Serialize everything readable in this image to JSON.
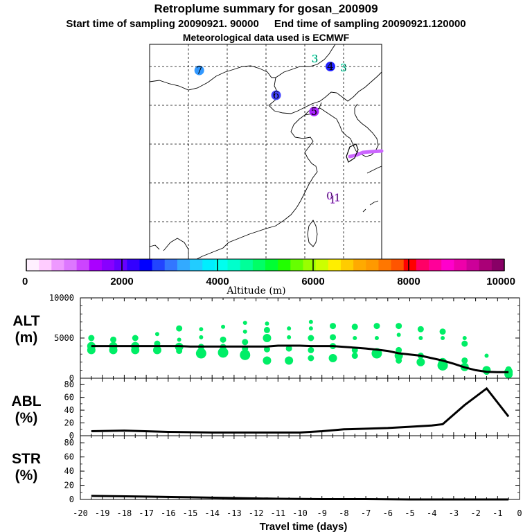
{
  "header": {
    "title": "Retroplume summary for gosan_200909",
    "start_time": "Start time of sampling 20090921. 90000",
    "end_time": "End time of sampling 20090921.120000",
    "met_data": "Meteorological data used is ECMWF"
  },
  "map": {
    "day_markers": [
      {
        "label": "0",
        "lon": 126.2,
        "lat": 33.3,
        "color": "#cc66ff"
      },
      {
        "label": "1",
        "lon": 126.6,
        "lat": 32.8,
        "color": "#cc66ff"
      },
      {
        "label": "1",
        "lon": 127.2,
        "lat": 33.1,
        "color": "#cc66ff"
      },
      {
        "label": "3",
        "lon": 124.3,
        "lat": 51.0,
        "color": "#33ffcc"
      },
      {
        "label": "3",
        "lon": 128.0,
        "lat": 49.8,
        "color": "#33ffcc"
      },
      {
        "label": "4",
        "lon": 126.3,
        "lat": 50.0,
        "color": "#2222ff"
      },
      {
        "label": "5",
        "lon": 124.2,
        "lat": 44.2,
        "color": "#aa22ff"
      },
      {
        "label": "6",
        "lon": 119.3,
        "lat": 46.3,
        "color": "#4444ff"
      },
      {
        "label": "7",
        "lon": 109.4,
        "lat": 49.5,
        "color": "#3399ff"
      }
    ],
    "plume_colors": [
      "#cc66ff",
      "#aa44ff"
    ]
  },
  "colorbar": {
    "colors": [
      "#fff0ff",
      "#ffccff",
      "#ee99ff",
      "#dd77ff",
      "#cc44ff",
      "#aa00ff",
      "#8800ff",
      "#6600ff",
      "#3300ff",
      "#0000ff",
      "#2244ff",
      "#3377ff",
      "#33aaff",
      "#22ccff",
      "#00eeff",
      "#00ffee",
      "#00ffcc",
      "#00ff99",
      "#00ff66",
      "#00ff33",
      "#22ff00",
      "#66ff00",
      "#99ff00",
      "#ccff00",
      "#ffee00",
      "#ffcc00",
      "#ffaa00",
      "#ff9900",
      "#ff7700",
      "#ff5500",
      "#ff0000",
      "#ff0066",
      "#ff0099",
      "#ff00cc",
      "#ee00aa",
      "#cc0099",
      "#aa0077",
      "#880066"
    ],
    "tick_labels": [
      "0",
      "2000",
      "4000",
      "6000",
      "8000",
      "10000"
    ],
    "label": "Altitude (m)"
  },
  "chart_data": [
    {
      "type": "scatter",
      "name": "ALT",
      "ylabel": "ALT\n(m)",
      "ylabel_line1": "ALT",
      "ylabel_line2": "(m)",
      "xlim": [
        -20,
        0
      ],
      "ylim": [
        0,
        10000
      ],
      "yticks": [
        "0",
        "5000",
        "10000"
      ],
      "marker_color": "#00ee66",
      "median_line": {
        "x": [
          -19.5,
          -19,
          -18.5,
          -18,
          -17.5,
          -17,
          -16.5,
          -16,
          -15.5,
          -15,
          -14.5,
          -14,
          -13.5,
          -13,
          -12.5,
          -12,
          -11.5,
          -11,
          -10.5,
          -10,
          -9.5,
          -9,
          -8.5,
          -8,
          -7.5,
          -7,
          -6.5,
          -6,
          -5.5,
          -5,
          -4.5,
          -4,
          -3.5,
          -3,
          -2.5,
          -2,
          -1.5,
          -1,
          -0.5
        ],
        "y": [
          4000,
          4000,
          4000,
          4000,
          4000,
          4000,
          4000,
          4000,
          4000,
          3950,
          3950,
          3950,
          3950,
          3950,
          3950,
          3950,
          3950,
          4050,
          4050,
          4050,
          4000,
          4000,
          4000,
          3900,
          3800,
          3700,
          3550,
          3400,
          3100,
          2950,
          2800,
          2500,
          2200,
          1800,
          1350,
          1000,
          800,
          750,
          750
        ]
      },
      "points": [
        {
          "x": -19.5,
          "y": 5000,
          "s": 2
        },
        {
          "x": -19.5,
          "y": 4000,
          "s": 3
        },
        {
          "x": -19.5,
          "y": 3500,
          "s": 3
        },
        {
          "x": -18.5,
          "y": 4800,
          "s": 2
        },
        {
          "x": -18.5,
          "y": 4000,
          "s": 3
        },
        {
          "x": -18.5,
          "y": 3500,
          "s": 3
        },
        {
          "x": -17.5,
          "y": 5000,
          "s": 2
        },
        {
          "x": -17.5,
          "y": 4000,
          "s": 3
        },
        {
          "x": -17.5,
          "y": 3500,
          "s": 3
        },
        {
          "x": -16.5,
          "y": 5500,
          "s": 1
        },
        {
          "x": -16.5,
          "y": 4300,
          "s": 2
        },
        {
          "x": -16.5,
          "y": 3500,
          "s": 3
        },
        {
          "x": -15.5,
          "y": 6200,
          "s": 2
        },
        {
          "x": -15.5,
          "y": 4800,
          "s": 1
        },
        {
          "x": -15.5,
          "y": 3900,
          "s": 3
        },
        {
          "x": -15.5,
          "y": 3400,
          "s": 2
        },
        {
          "x": -14.5,
          "y": 6100,
          "s": 1
        },
        {
          "x": -14.5,
          "y": 5100,
          "s": 1
        },
        {
          "x": -14.5,
          "y": 3900,
          "s": 2
        },
        {
          "x": -14.5,
          "y": 3100,
          "s": 4
        },
        {
          "x": -13.5,
          "y": 6400,
          "s": 1
        },
        {
          "x": -13.5,
          "y": 4800,
          "s": 2
        },
        {
          "x": -13.5,
          "y": 3900,
          "s": 2
        },
        {
          "x": -13.5,
          "y": 3200,
          "s": 4
        },
        {
          "x": -12.5,
          "y": 6900,
          "s": 1
        },
        {
          "x": -12.5,
          "y": 5800,
          "s": 1
        },
        {
          "x": -12.5,
          "y": 4500,
          "s": 2
        },
        {
          "x": -12.5,
          "y": 3700,
          "s": 2
        },
        {
          "x": -12.5,
          "y": 2900,
          "s": 4
        },
        {
          "x": -11.5,
          "y": 6800,
          "s": 1
        },
        {
          "x": -11.5,
          "y": 6000,
          "s": 2
        },
        {
          "x": -11.5,
          "y": 5000,
          "s": 3
        },
        {
          "x": -11.5,
          "y": 3600,
          "s": 2
        },
        {
          "x": -11.5,
          "y": 2200,
          "s": 3
        },
        {
          "x": -10.5,
          "y": 6200,
          "s": 1
        },
        {
          "x": -10.5,
          "y": 5100,
          "s": 1
        },
        {
          "x": -10.5,
          "y": 3700,
          "s": 2
        },
        {
          "x": -10.5,
          "y": 2200,
          "s": 3
        },
        {
          "x": -9.5,
          "y": 7000,
          "s": 1
        },
        {
          "x": -9.5,
          "y": 6200,
          "s": 1
        },
        {
          "x": -9.5,
          "y": 5000,
          "s": 2
        },
        {
          "x": -9.5,
          "y": 3500,
          "s": 2
        },
        {
          "x": -9.5,
          "y": 2500,
          "s": 2
        },
        {
          "x": -8.5,
          "y": 6500,
          "s": 2
        },
        {
          "x": -8.5,
          "y": 5100,
          "s": 2
        },
        {
          "x": -8.5,
          "y": 4000,
          "s": 2
        },
        {
          "x": -8.5,
          "y": 2500,
          "s": 3
        },
        {
          "x": -7.5,
          "y": 6400,
          "s": 2
        },
        {
          "x": -7.5,
          "y": 5000,
          "s": 1
        },
        {
          "x": -7.5,
          "y": 3500,
          "s": 2
        },
        {
          "x": -7.5,
          "y": 2800,
          "s": 2
        },
        {
          "x": -6.5,
          "y": 6500,
          "s": 2
        },
        {
          "x": -6.5,
          "y": 5000,
          "s": 1
        },
        {
          "x": -6.5,
          "y": 3100,
          "s": 4
        },
        {
          "x": -5.5,
          "y": 6500,
          "s": 2
        },
        {
          "x": -5.5,
          "y": 5400,
          "s": 1
        },
        {
          "x": -5.5,
          "y": 3500,
          "s": 2
        },
        {
          "x": -5.5,
          "y": 2800,
          "s": 3
        },
        {
          "x": -5.5,
          "y": 2200,
          "s": 2
        },
        {
          "x": -4.5,
          "y": 6100,
          "s": 2
        },
        {
          "x": -4.5,
          "y": 5000,
          "s": 1
        },
        {
          "x": -4.5,
          "y": 2800,
          "s": 2
        },
        {
          "x": -4.5,
          "y": 2000,
          "s": 3
        },
        {
          "x": -3.5,
          "y": 5800,
          "s": 2
        },
        {
          "x": -3.5,
          "y": 5000,
          "s": 1
        },
        {
          "x": -3.5,
          "y": 2000,
          "s": 3
        },
        {
          "x": -3.5,
          "y": 1600,
          "s": 4
        },
        {
          "x": -2.5,
          "y": 5000,
          "s": 1
        },
        {
          "x": -2.5,
          "y": 4300,
          "s": 2
        },
        {
          "x": -2.5,
          "y": 2200,
          "s": 2
        },
        {
          "x": -2.5,
          "y": 1400,
          "s": 3
        },
        {
          "x": -1.5,
          "y": 2800,
          "s": 1
        },
        {
          "x": -1.5,
          "y": 1000,
          "s": 3
        },
        {
          "x": -1.5,
          "y": 800,
          "s": 2
        },
        {
          "x": -0.5,
          "y": 1100,
          "s": 2
        },
        {
          "x": -0.5,
          "y": 800,
          "s": 3
        },
        {
          "x": -0.5,
          "y": 500,
          "s": 3
        }
      ]
    },
    {
      "type": "line",
      "name": "ABL",
      "ylabel_line1": "ABL",
      "ylabel_line2": "(%)",
      "xlim": [
        -20,
        0
      ],
      "ylim": [
        0,
        90
      ],
      "yticks": [
        "0",
        "20",
        "40",
        "60",
        "80"
      ],
      "x": [
        -19.5,
        -18,
        -16,
        -14,
        -12,
        -10,
        -9,
        -8,
        -7,
        -6,
        -5,
        -4,
        -3.5,
        -2.5,
        -1.5,
        -0.5
      ],
      "y": [
        7,
        8,
        6,
        5,
        5,
        5,
        7,
        10,
        11,
        12,
        14,
        16,
        18,
        48,
        74,
        30
      ]
    },
    {
      "type": "line",
      "name": "STR",
      "ylabel_line1": "STR",
      "ylabel_line2": "(%)",
      "xlim": [
        -20,
        0
      ],
      "ylim": [
        0,
        90
      ],
      "yticks": [
        "0",
        "20",
        "40",
        "60",
        "80"
      ],
      "xlabel": "Travel time (days)",
      "xticks": [
        "-20",
        "-19",
        "-18",
        "-17",
        "-16",
        "-15",
        "-14",
        "-13",
        "-12",
        "-11",
        "-10",
        "-9",
        "-8",
        "-7",
        "-6",
        "-5",
        "-4",
        "-3",
        "-2",
        "-1",
        "0"
      ],
      "x": [
        -19.5,
        -17,
        -15,
        -13,
        -11,
        -9,
        -7,
        -5,
        -3,
        -1,
        -0.5
      ],
      "y": [
        5,
        4,
        3,
        2,
        1,
        0.5,
        0.5,
        0,
        0,
        0,
        0
      ]
    }
  ]
}
